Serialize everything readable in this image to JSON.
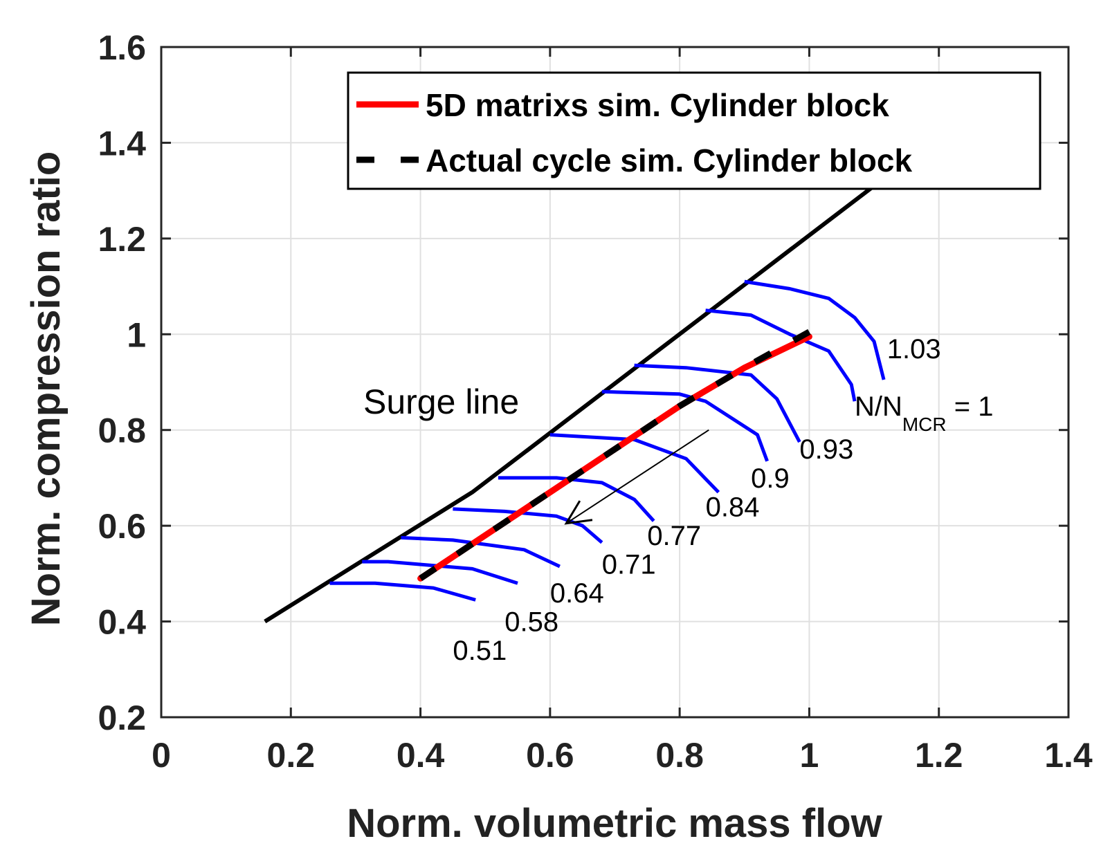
{
  "chart_data": {
    "type": "line",
    "title": "",
    "xlabel": "Norm. volumetric mass flow",
    "ylabel": "Norm. compression ratio",
    "xlim": [
      0,
      1.4
    ],
    "ylim": [
      0.2,
      1.6
    ],
    "xticks": [
      0,
      0.2,
      0.4,
      0.6,
      0.8,
      1,
      1.2,
      1.4
    ],
    "yticks": [
      0.2,
      0.4,
      0.6,
      0.8,
      1,
      1.2,
      1.4,
      1.6
    ],
    "xtick_labels": [
      "0",
      "0.2",
      "0.4",
      "0.6",
      "0.8",
      "1",
      "1.2",
      "1.4"
    ],
    "ytick_labels": [
      "0.2",
      "0.4",
      "0.6",
      "0.8",
      "1",
      "1.2",
      "1.4",
      "1.6"
    ],
    "grid": true,
    "colors": {
      "speed_lines": "#0000ff",
      "sim_5d": "#ff0000",
      "actual": "#000000",
      "surge": "#000000"
    },
    "legend": {
      "location": "top-right",
      "entries": [
        {
          "label": "5D matrixs sim. Cylinder block",
          "color": "#ff0000",
          "style": "solid"
        },
        {
          "label": "Actual cycle sim. Cylinder block",
          "color": "#000000",
          "style": "dashed"
        }
      ]
    },
    "surge_line": {
      "label": "Surge line",
      "points": [
        [
          0.16,
          0.4
        ],
        [
          0.48,
          0.67
        ],
        [
          1.1,
          1.31
        ]
      ]
    },
    "operating_line_5d": {
      "name": "5D matrixs sim. Cylinder block",
      "points": [
        [
          0.4,
          0.49
        ],
        [
          0.5,
          0.58
        ],
        [
          0.6,
          0.67
        ],
        [
          0.7,
          0.76
        ],
        [
          0.8,
          0.85
        ],
        [
          0.9,
          0.93
        ],
        [
          1.0,
          0.995
        ]
      ]
    },
    "operating_line_actual": {
      "name": "Actual cycle sim. Cylinder block",
      "points": [
        [
          0.4,
          0.49
        ],
        [
          0.5,
          0.58
        ],
        [
          0.6,
          0.67
        ],
        [
          0.7,
          0.76
        ],
        [
          0.8,
          0.85
        ],
        [
          0.9,
          0.93
        ],
        [
          1.0,
          1.005
        ]
      ]
    },
    "speed_lines": [
      {
        "label": "0.51",
        "points": [
          [
            0.26,
            0.48
          ],
          [
            0.33,
            0.48
          ],
          [
            0.42,
            0.47
          ],
          [
            0.485,
            0.445
          ]
        ]
      },
      {
        "label": "0.58",
        "points": [
          [
            0.31,
            0.525
          ],
          [
            0.35,
            0.525
          ],
          [
            0.48,
            0.51
          ],
          [
            0.55,
            0.48
          ]
        ]
      },
      {
        "label": "0.64",
        "points": [
          [
            0.37,
            0.575
          ],
          [
            0.45,
            0.57
          ],
          [
            0.56,
            0.55
          ],
          [
            0.615,
            0.515
          ]
        ]
      },
      {
        "label": "0.71",
        "points": [
          [
            0.45,
            0.635
          ],
          [
            0.53,
            0.63
          ],
          [
            0.61,
            0.62
          ],
          [
            0.65,
            0.6
          ],
          [
            0.68,
            0.565
          ]
        ]
      },
      {
        "label": "0.77",
        "points": [
          [
            0.52,
            0.7
          ],
          [
            0.61,
            0.7
          ],
          [
            0.68,
            0.69
          ],
          [
            0.73,
            0.655
          ],
          [
            0.76,
            0.61
          ]
        ]
      },
      {
        "label": "0.84",
        "points": [
          [
            0.6,
            0.79
          ],
          [
            0.73,
            0.78
          ],
          [
            0.81,
            0.74
          ],
          [
            0.86,
            0.67
          ]
        ]
      },
      {
        "label": "0.9",
        "points": [
          [
            0.68,
            0.88
          ],
          [
            0.8,
            0.875
          ],
          [
            0.84,
            0.86
          ],
          [
            0.92,
            0.79
          ],
          [
            0.935,
            0.735
          ]
        ]
      },
      {
        "label": "0.93",
        "points": [
          [
            0.73,
            0.935
          ],
          [
            0.81,
            0.93
          ],
          [
            0.91,
            0.915
          ],
          [
            0.95,
            0.865
          ],
          [
            0.985,
            0.775
          ]
        ]
      },
      {
        "label": "N/N_MCR = 1",
        "points": [
          [
            0.84,
            1.05
          ],
          [
            0.91,
            1.04
          ],
          [
            0.97,
            1.0
          ],
          [
            1.03,
            0.965
          ],
          [
            1.065,
            0.895
          ],
          [
            1.07,
            0.86
          ]
        ]
      },
      {
        "label": "1.03",
        "points": [
          [
            0.9,
            1.11
          ],
          [
            0.97,
            1.095
          ],
          [
            1.03,
            1.075
          ],
          [
            1.07,
            1.035
          ],
          [
            1.1,
            0.985
          ],
          [
            1.115,
            0.905
          ]
        ]
      }
    ],
    "annotations": [
      {
        "text": "1.03",
        "x": 1.12,
        "y": 0.95
      },
      {
        "text_main": "N/N",
        "text_sub": "MCR",
        "text_tail": " = 1",
        "x": 1.07,
        "y": 0.83
      },
      {
        "text": "0.93",
        "x": 0.985,
        "y": 0.74
      },
      {
        "text": "0.9",
        "x": 0.91,
        "y": 0.68
      },
      {
        "text": "0.84",
        "x": 0.84,
        "y": 0.62
      },
      {
        "text": "0.77",
        "x": 0.75,
        "y": 0.56
      },
      {
        "text": "0.71",
        "x": 0.68,
        "y": 0.5
      },
      {
        "text": "0.64",
        "x": 0.6,
        "y": 0.44
      },
      {
        "text": "0.58",
        "x": 0.53,
        "y": 0.38
      },
      {
        "text": "0.51",
        "x": 0.45,
        "y": 0.32
      }
    ],
    "arrow": {
      "from": [
        0.845,
        0.8
      ],
      "to": [
        0.625,
        0.605
      ]
    }
  }
}
